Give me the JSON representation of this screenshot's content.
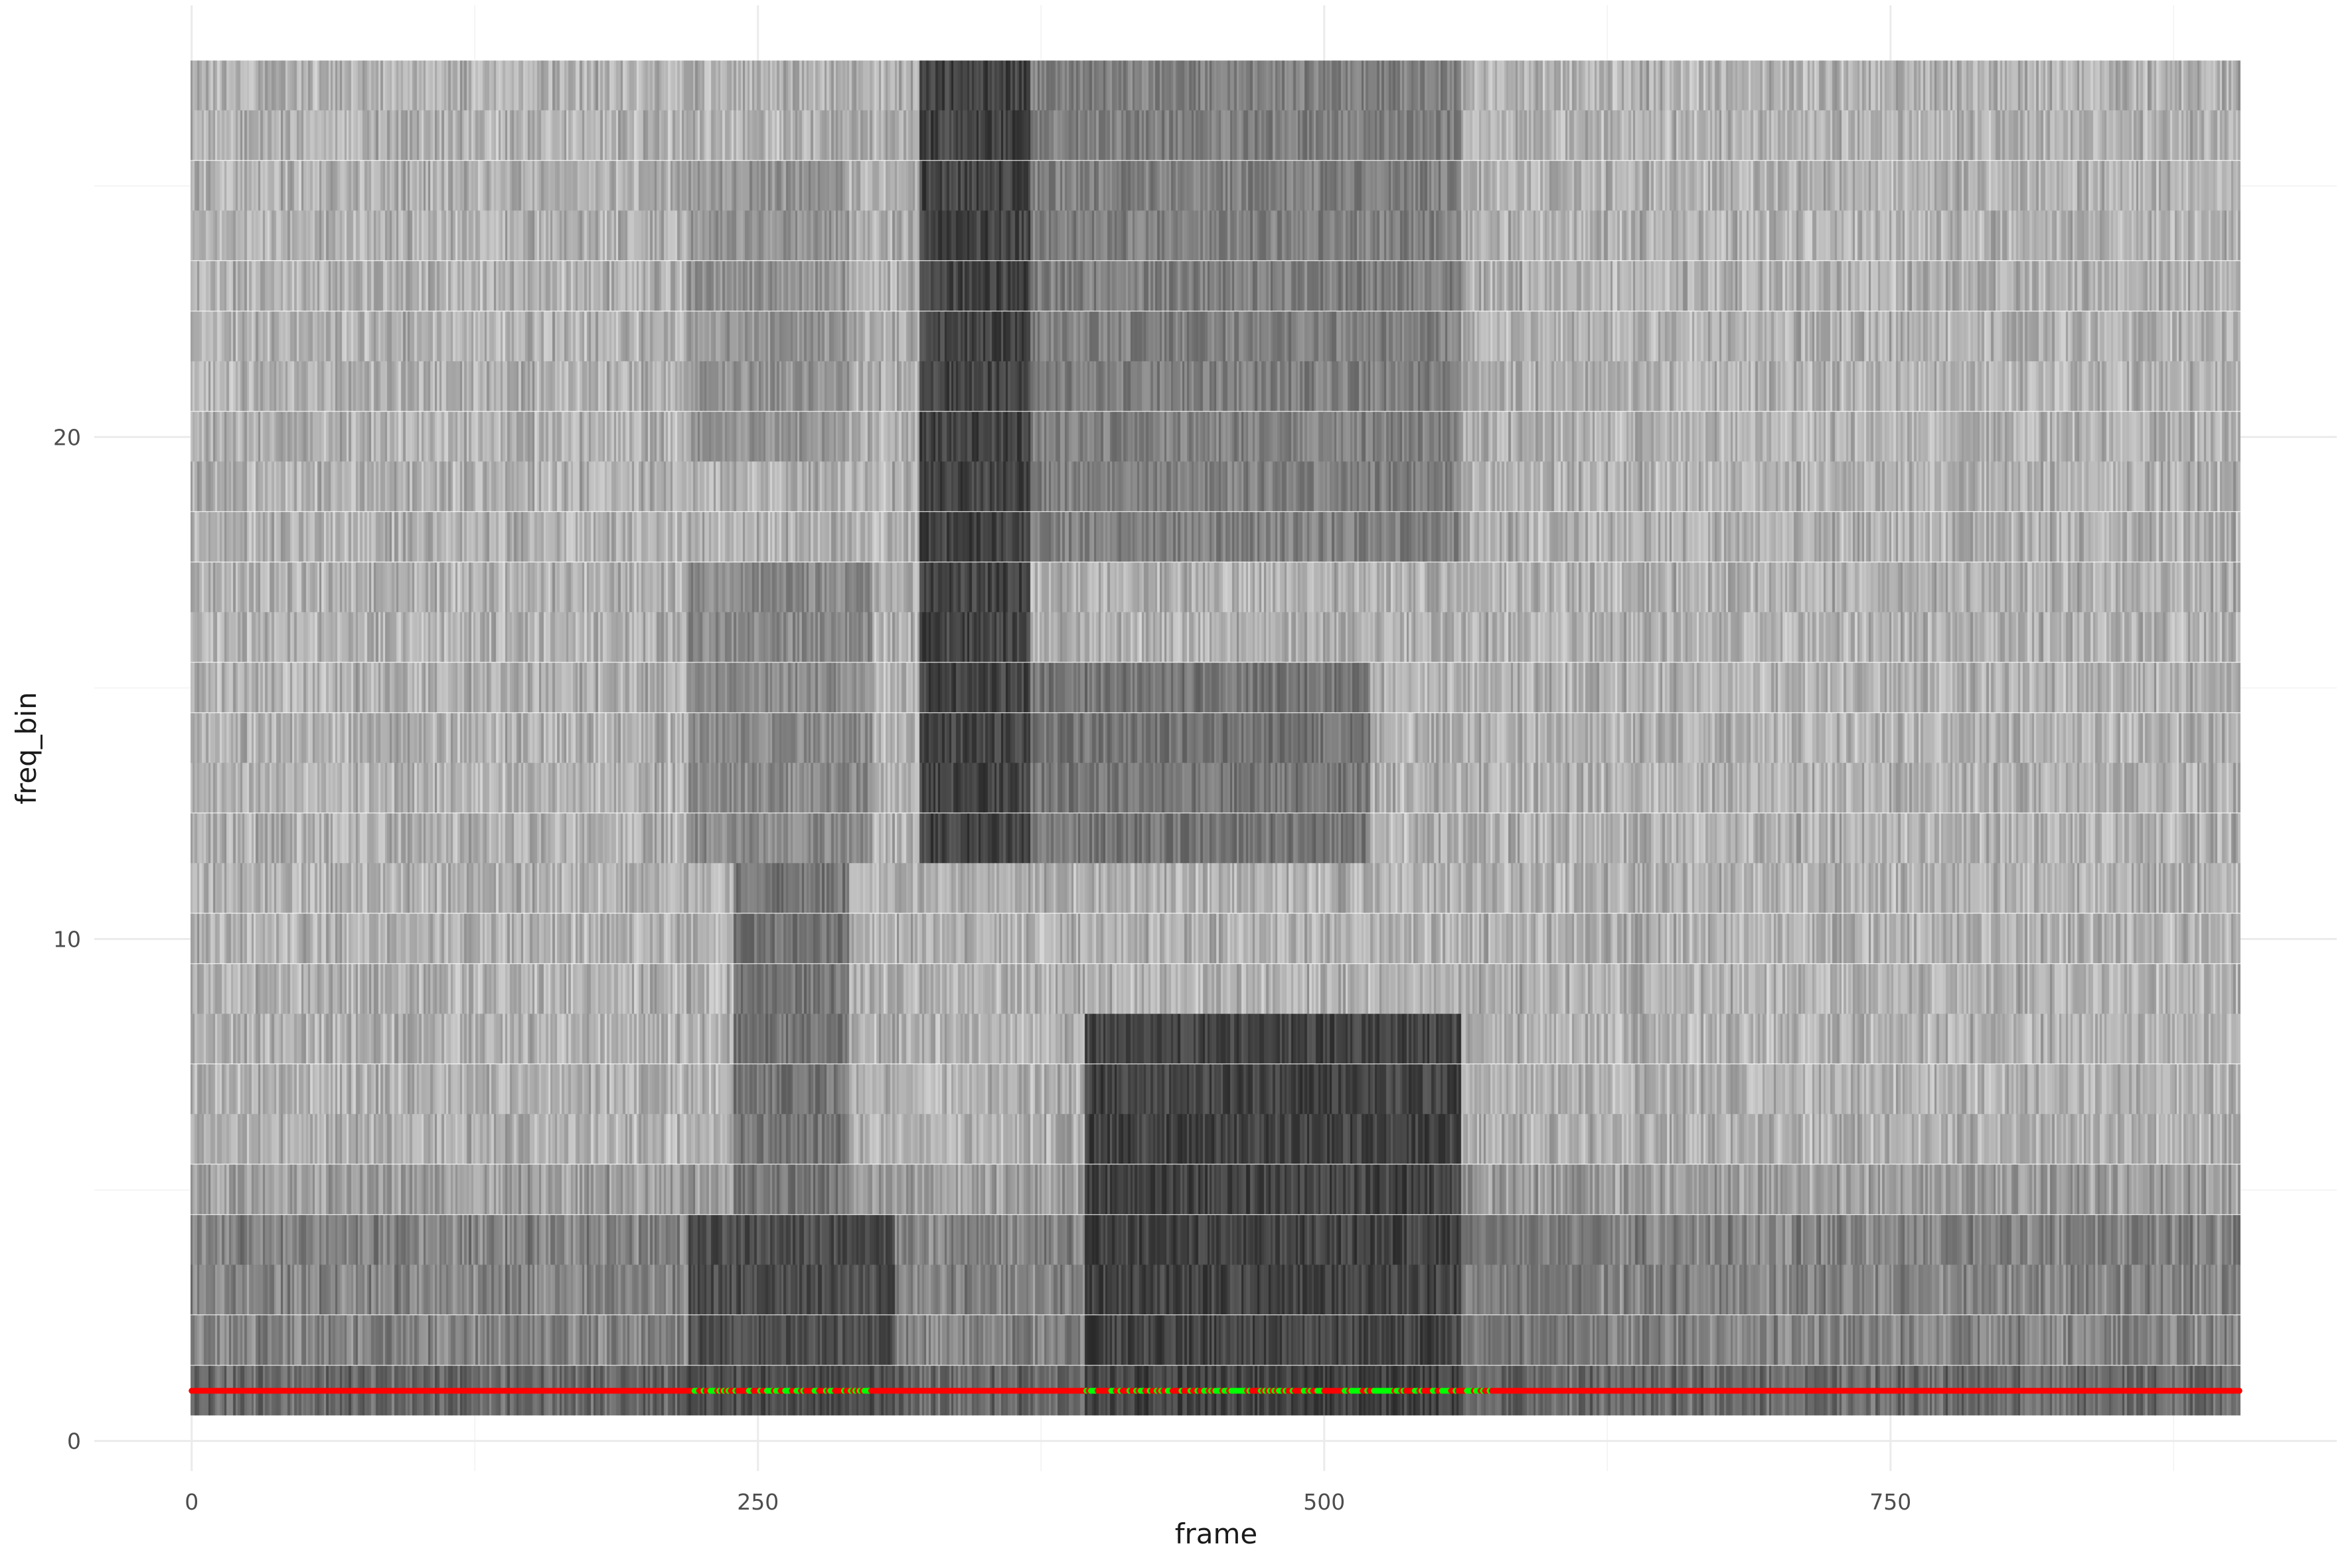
{
  "chart_data": {
    "type": "heatmap",
    "title": "",
    "xlabel": "frame",
    "ylabel": "freq_bin",
    "xlim": [
      -43,
      947
    ],
    "ylim": [
      -0.6,
      28.6
    ],
    "x_ticks": [
      0,
      250,
      500,
      750
    ],
    "y_ticks": [
      0,
      10,
      20
    ],
    "x_minor": [
      125,
      375,
      625,
      875
    ],
    "y_minor": [
      5,
      15,
      25
    ],
    "grid": "on",
    "frames": [
      0,
      904
    ],
    "freq_bins": [
      1,
      27
    ],
    "fill_scale": {
      "low": "#e6e6e6",
      "high": "#1a1a1a"
    },
    "energy_regions": [
      {
        "frames": [
          220,
          310
        ],
        "bins": [
          1,
          4
        ],
        "intensity": 0.75
      },
      {
        "frames": [
          240,
          290
        ],
        "bins": [
          5,
          11
        ],
        "intensity": 0.55
      },
      {
        "frames": [
          220,
          300
        ],
        "bins": [
          12,
          17
        ],
        "intensity": 0.45
      },
      {
        "frames": [
          220,
          290
        ],
        "bins": [
          20,
          25
        ],
        "intensity": 0.4
      },
      {
        "frames": [
          322,
          370
        ],
        "bins": [
          12,
          27
        ],
        "intensity": 0.8
      },
      {
        "frames": [
          370,
          520
        ],
        "bins": [
          12,
          15
        ],
        "intensity": 0.55
      },
      {
        "frames": [
          370,
          560
        ],
        "bins": [
          18,
          27
        ],
        "intensity": 0.5
      },
      {
        "frames": [
          395,
          560
        ],
        "bins": [
          1,
          8
        ],
        "intensity": 0.8
      },
      {
        "frames": [
          560,
          620
        ],
        "bins": [
          1,
          4
        ],
        "intensity": 0.5
      }
    ],
    "series": [
      {
        "type": "points",
        "y": 1,
        "x_range": [
          0,
          904
        ],
        "default_color": "#ff0000",
        "alt_color": "#00ff00",
        "alt_frames": [
          [
            222,
            300
          ],
          [
            395,
            575
          ]
        ]
      }
    ]
  }
}
